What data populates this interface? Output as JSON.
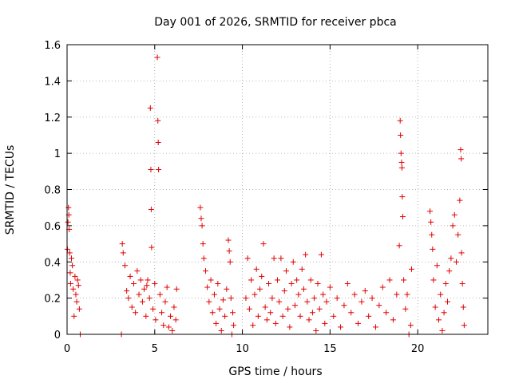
{
  "chart_data": {
    "type": "scatter",
    "title": "Day 001 of 2026, SRMTID for receiver pbca",
    "xlabel": "GPS time / hours",
    "ylabel": "SRMTID / TECUs",
    "xlim": [
      0,
      24
    ],
    "ylim": [
      0,
      1.6
    ],
    "xticks": [
      0,
      5,
      10,
      15,
      20
    ],
    "yticks": [
      0,
      0.2,
      0.4,
      0.6,
      0.8,
      1,
      1.2,
      1.4,
      1.6
    ],
    "xtick_labels": [
      "0",
      "5",
      "10",
      "15",
      "20"
    ],
    "ytick_labels": [
      "0",
      "0.2",
      "0.4",
      "0.6",
      "0.8",
      "1",
      "1.2",
      "1.4",
      "1.6"
    ],
    "grid": true,
    "marker": "plus",
    "color": "#e00000",
    "series": [
      {
        "name": "SRMTID",
        "points": [
          [
            0.02,
            0.47
          ],
          [
            0.05,
            0.62
          ],
          [
            0.08,
            0.7
          ],
          [
            0.1,
            0.66
          ],
          [
            0.12,
            0.58
          ],
          [
            0.15,
            0.45
          ],
          [
            0.18,
            0.34
          ],
          [
            0.2,
            0.28
          ],
          [
            0.25,
            0.42
          ],
          [
            0.3,
            0.38
          ],
          [
            0.35,
            0.25
          ],
          [
            0.4,
            0.1
          ],
          [
            0.45,
            0.32
          ],
          [
            0.5,
            0.22
          ],
          [
            0.55,
            0.18
          ],
          [
            0.6,
            0.3
          ],
          [
            0.65,
            0.27
          ],
          [
            0.7,
            0.14
          ],
          [
            0.75,
            0.0
          ],
          [
            3.1,
            0.0
          ],
          [
            3.15,
            0.5
          ],
          [
            3.2,
            0.45
          ],
          [
            3.3,
            0.38
          ],
          [
            3.4,
            0.24
          ],
          [
            3.5,
            0.2
          ],
          [
            3.6,
            0.32
          ],
          [
            3.7,
            0.15
          ],
          [
            3.8,
            0.28
          ],
          [
            3.9,
            0.12
          ],
          [
            4.0,
            0.35
          ],
          [
            4.1,
            0.22
          ],
          [
            4.2,
            0.3
          ],
          [
            4.3,
            0.18
          ],
          [
            4.4,
            0.25
          ],
          [
            4.5,
            0.1
          ],
          [
            4.55,
            0.27
          ],
          [
            4.6,
            0.3
          ],
          [
            4.7,
            0.2
          ],
          [
            4.75,
            1.25
          ],
          [
            4.78,
            0.91
          ],
          [
            4.8,
            0.69
          ],
          [
            4.82,
            0.48
          ],
          [
            4.9,
            0.14
          ],
          [
            5.0,
            0.28
          ],
          [
            5.05,
            0.08
          ],
          [
            5.15,
            1.53
          ],
          [
            5.18,
            1.18
          ],
          [
            5.2,
            1.06
          ],
          [
            5.22,
            0.91
          ],
          [
            5.3,
            0.22
          ],
          [
            5.4,
            0.12
          ],
          [
            5.5,
            0.05
          ],
          [
            5.6,
            0.18
          ],
          [
            5.7,
            0.26
          ],
          [
            5.8,
            0.04
          ],
          [
            5.9,
            0.1
          ],
          [
            6.0,
            0.02
          ],
          [
            6.1,
            0.15
          ],
          [
            6.2,
            0.08
          ],
          [
            6.25,
            0.25
          ],
          [
            7.6,
            0.7
          ],
          [
            7.65,
            0.64
          ],
          [
            7.7,
            0.6
          ],
          [
            7.75,
            0.5
          ],
          [
            7.8,
            0.42
          ],
          [
            7.9,
            0.35
          ],
          [
            8.0,
            0.26
          ],
          [
            8.1,
            0.18
          ],
          [
            8.2,
            0.3
          ],
          [
            8.3,
            0.12
          ],
          [
            8.4,
            0.22
          ],
          [
            8.5,
            0.06
          ],
          [
            8.6,
            0.28
          ],
          [
            8.7,
            0.14
          ],
          [
            8.8,
            0.02
          ],
          [
            8.9,
            0.19
          ],
          [
            9.0,
            0.1
          ],
          [
            9.1,
            0.25
          ],
          [
            9.2,
            0.52
          ],
          [
            9.25,
            0.46
          ],
          [
            9.3,
            0.4
          ],
          [
            9.35,
            0.2
          ],
          [
            9.4,
            0.0
          ],
          [
            9.45,
            0.12
          ],
          [
            9.5,
            0.05
          ],
          [
            10.2,
            0.2
          ],
          [
            10.3,
            0.42
          ],
          [
            10.4,
            0.14
          ],
          [
            10.5,
            0.3
          ],
          [
            10.6,
            0.05
          ],
          [
            10.7,
            0.22
          ],
          [
            10.8,
            0.36
          ],
          [
            10.9,
            0.1
          ],
          [
            11.0,
            0.25
          ],
          [
            11.1,
            0.32
          ],
          [
            11.2,
            0.5
          ],
          [
            11.3,
            0.15
          ],
          [
            11.4,
            0.08
          ],
          [
            11.5,
            0.28
          ],
          [
            11.6,
            0.12
          ],
          [
            11.7,
            0.2
          ],
          [
            11.8,
            0.42
          ],
          [
            11.9,
            0.06
          ],
          [
            12.0,
            0.3
          ],
          [
            12.1,
            0.18
          ],
          [
            12.2,
            0.42
          ],
          [
            12.3,
            0.1
          ],
          [
            12.4,
            0.24
          ],
          [
            12.5,
            0.35
          ],
          [
            12.6,
            0.14
          ],
          [
            12.7,
            0.04
          ],
          [
            12.8,
            0.28
          ],
          [
            12.9,
            0.4
          ],
          [
            13.0,
            0.16
          ],
          [
            13.1,
            0.3
          ],
          [
            13.2,
            0.22
          ],
          [
            13.3,
            0.1
          ],
          [
            13.4,
            0.36
          ],
          [
            13.5,
            0.25
          ],
          [
            13.6,
            0.44
          ],
          [
            13.7,
            0.18
          ],
          [
            13.8,
            0.08
          ],
          [
            13.9,
            0.3
          ],
          [
            14.0,
            0.12
          ],
          [
            14.1,
            0.2
          ],
          [
            14.2,
            0.02
          ],
          [
            14.3,
            0.28
          ],
          [
            14.4,
            0.14
          ],
          [
            14.5,
            0.44
          ],
          [
            14.6,
            0.22
          ],
          [
            14.7,
            0.06
          ],
          [
            14.8,
            0.18
          ],
          [
            15.0,
            0.26
          ],
          [
            15.2,
            0.1
          ],
          [
            15.4,
            0.2
          ],
          [
            15.6,
            0.04
          ],
          [
            15.8,
            0.16
          ],
          [
            16.0,
            0.28
          ],
          [
            16.2,
            0.12
          ],
          [
            16.4,
            0.22
          ],
          [
            16.6,
            0.06
          ],
          [
            16.8,
            0.18
          ],
          [
            17.0,
            0.24
          ],
          [
            17.2,
            0.1
          ],
          [
            17.4,
            0.2
          ],
          [
            17.6,
            0.04
          ],
          [
            17.8,
            0.16
          ],
          [
            18.0,
            0.26
          ],
          [
            18.2,
            0.12
          ],
          [
            18.4,
            0.3
          ],
          [
            18.6,
            0.08
          ],
          [
            18.8,
            0.22
          ],
          [
            18.95,
            0.49
          ],
          [
            19.0,
            1.18
          ],
          [
            19.02,
            1.1
          ],
          [
            19.05,
            1.0
          ],
          [
            19.08,
            0.95
          ],
          [
            19.1,
            0.92
          ],
          [
            19.12,
            0.76
          ],
          [
            19.15,
            0.65
          ],
          [
            19.2,
            0.3
          ],
          [
            19.3,
            0.14
          ],
          [
            19.4,
            0.22
          ],
          [
            19.5,
            0.0
          ],
          [
            19.6,
            0.05
          ],
          [
            19.65,
            0.36
          ],
          [
            20.7,
            0.68
          ],
          [
            20.75,
            0.62
          ],
          [
            20.8,
            0.55
          ],
          [
            20.85,
            0.47
          ],
          [
            20.9,
            0.3
          ],
          [
            21.0,
            0.15
          ],
          [
            21.1,
            0.38
          ],
          [
            21.2,
            0.08
          ],
          [
            21.3,
            0.22
          ],
          [
            21.4,
            0.02
          ],
          [
            21.5,
            0.12
          ],
          [
            21.6,
            0.28
          ],
          [
            21.7,
            0.18
          ],
          [
            21.8,
            0.35
          ],
          [
            21.9,
            0.42
          ],
          [
            22.0,
            0.6
          ],
          [
            22.1,
            0.66
          ],
          [
            22.2,
            0.4
          ],
          [
            22.3,
            0.55
          ],
          [
            22.4,
            0.74
          ],
          [
            22.45,
            1.02
          ],
          [
            22.48,
            0.97
          ],
          [
            22.5,
            0.45
          ],
          [
            22.55,
            0.28
          ],
          [
            22.6,
            0.15
          ],
          [
            22.65,
            0.05
          ]
        ]
      }
    ]
  }
}
